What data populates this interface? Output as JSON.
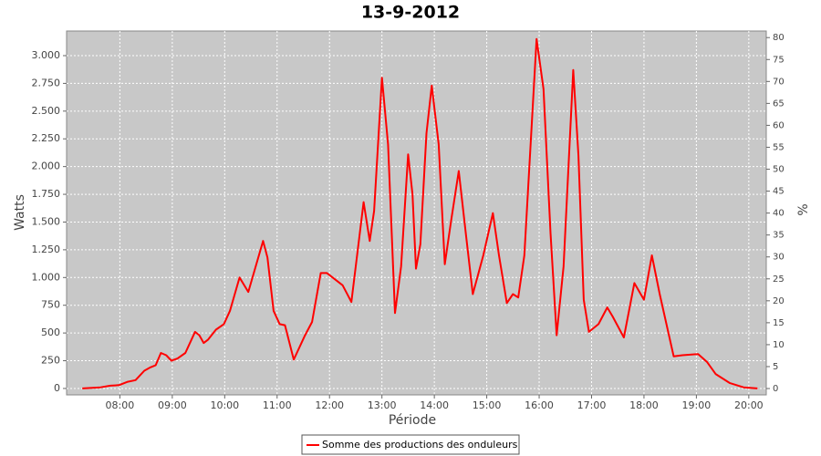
{
  "chart_data": {
    "type": "line",
    "title": "13-9-2012",
    "x_label": "Période",
    "y_label": "Watts",
    "y2_label": "%",
    "x": [
      "07:17",
      "07:38",
      "07:49",
      "07:59",
      "08:09",
      "08:18",
      "08:28",
      "08:35",
      "08:41",
      "08:47",
      "08:53",
      "08:59",
      "09:06",
      "09:15",
      "09:26",
      "09:31",
      "09:36",
      "09:41",
      "09:50",
      "09:59",
      "10:06",
      "10:17",
      "10:27",
      "10:44",
      "10:49",
      "10:56",
      "11:03",
      "11:09",
      "11:19",
      "11:32",
      "11:40",
      "11:50",
      "11:57",
      "12:15",
      "12:25",
      "12:39",
      "12:46",
      "12:51",
      "13:00",
      "13:07",
      "13:15",
      "13:22",
      "13:30",
      "13:35",
      "13:39",
      "13:44",
      "13:51",
      "13:57",
      "14:05",
      "14:12",
      "14:19",
      "14:28",
      "14:36",
      "14:44",
      "14:56",
      "15:07",
      "15:14",
      "15:23",
      "15:30",
      "15:36",
      "15:43",
      "15:57",
      "16:05",
      "16:13",
      "16:20",
      "16:28",
      "16:39",
      "16:45",
      "16:51",
      "16:57",
      "17:08",
      "17:18",
      "17:24",
      "17:37",
      "17:49",
      "18:00",
      "18:09",
      "18:18",
      "18:34",
      "18:44",
      "19:02",
      "19:12",
      "19:22",
      "19:38",
      "19:54",
      "20:10"
    ],
    "series": [
      {
        "name": "Somme des productions des onduleurs",
        "color": "#ff0000",
        "values": [
          0,
          10,
          25,
          30,
          60,
          75,
          160,
          190,
          210,
          320,
          300,
          250,
          270,
          320,
          510,
          480,
          410,
          440,
          530,
          580,
          700,
          1000,
          870,
          1330,
          1180,
          700,
          580,
          570,
          260,
          480,
          600,
          1040,
          1040,
          930,
          780,
          1680,
          1330,
          1600,
          2800,
          2200,
          680,
          1100,
          2110,
          1750,
          1080,
          1300,
          2300,
          2730,
          2200,
          1120,
          1500,
          1960,
          1400,
          850,
          1200,
          1580,
          1200,
          770,
          850,
          820,
          1200,
          3150,
          2700,
          1400,
          480,
          1100,
          2870,
          2100,
          800,
          510,
          580,
          730,
          650,
          460,
          950,
          800,
          1200,
          850,
          290,
          300,
          310,
          240,
          130,
          50,
          10,
          0
        ]
      }
    ],
    "xlim": [
      "06:59",
      "20:20"
    ],
    "xticks": [
      "08:00",
      "09:00",
      "10:00",
      "11:00",
      "12:00",
      "13:00",
      "14:00",
      "15:00",
      "16:00",
      "17:00",
      "18:00",
      "19:00",
      "20:00"
    ],
    "ylim": [
      -58,
      3222
    ],
    "yticks": [
      0,
      250,
      500,
      750,
      {
        "value": 1000,
        "label": "1.000"
      },
      {
        "value": 1250,
        "label": "1.250"
      },
      {
        "value": 1500,
        "label": "1.500"
      },
      {
        "value": 1750,
        "label": "1.750"
      },
      {
        "value": 2000,
        "label": "2.000"
      },
      {
        "value": 2250,
        "label": "2.250"
      },
      {
        "value": 2500,
        "label": "2.500"
      },
      {
        "value": 2750,
        "label": "2.750"
      },
      {
        "value": 3000,
        "label": "3.000"
      }
    ],
    "y2lim": [
      -1.45,
      81.5
    ],
    "y2ticks": [
      0,
      5,
      10,
      15,
      20,
      25,
      30,
      35,
      40,
      45,
      50,
      55,
      60,
      65,
      70,
      75,
      80
    ],
    "grid": true,
    "legend": "bottom"
  }
}
